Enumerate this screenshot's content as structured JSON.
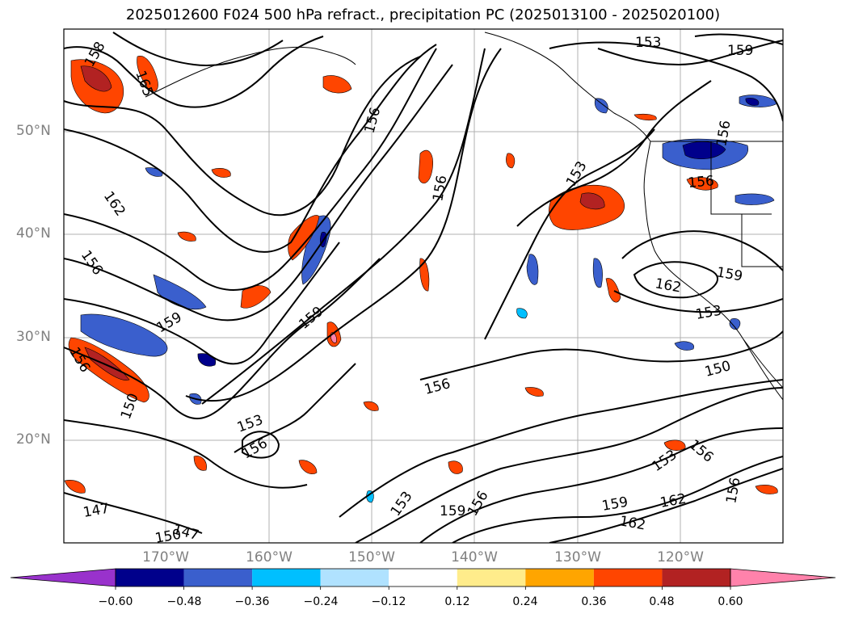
{
  "title": "2025012600 F024 500 hPa refract., precipitation PC (2025013100 - 2025020100)",
  "lat_labels": [
    "50°N",
    "40°N",
    "30°N",
    "20°N"
  ],
  "lon_labels": [
    "170°W",
    "160°W",
    "150°W",
    "140°W",
    "130°W",
    "120°W"
  ],
  "contour_labels": [
    "158",
    "165",
    "156",
    "162",
    "156",
    "159",
    "156",
    "159",
    "153",
    "156",
    "150",
    "153",
    "156",
    "156",
    "153",
    "159",
    "162",
    "153",
    "156",
    "159",
    "150",
    "147",
    "147",
    "150",
    "153",
    "159",
    "156",
    "156",
    "153",
    "156",
    "159",
    "162",
    "162",
    "156",
    "156",
    "162",
    "159",
    "150"
  ],
  "colorbar": {
    "colors": [
      "#9932CC",
      "#00008B",
      "#3A5FCD",
      "#00BFFF",
      "#B0E2FF",
      "#FFFFFF",
      "#FFEC8B",
      "#FFA500",
      "#FF4500",
      "#B22222",
      "#FF82AB"
    ],
    "tick_labels": [
      "−0.60",
      "−0.48",
      "−0.36",
      "−0.24",
      "−0.12",
      "0.12",
      "0.24",
      "0.36",
      "0.48",
      "0.60"
    ]
  }
}
